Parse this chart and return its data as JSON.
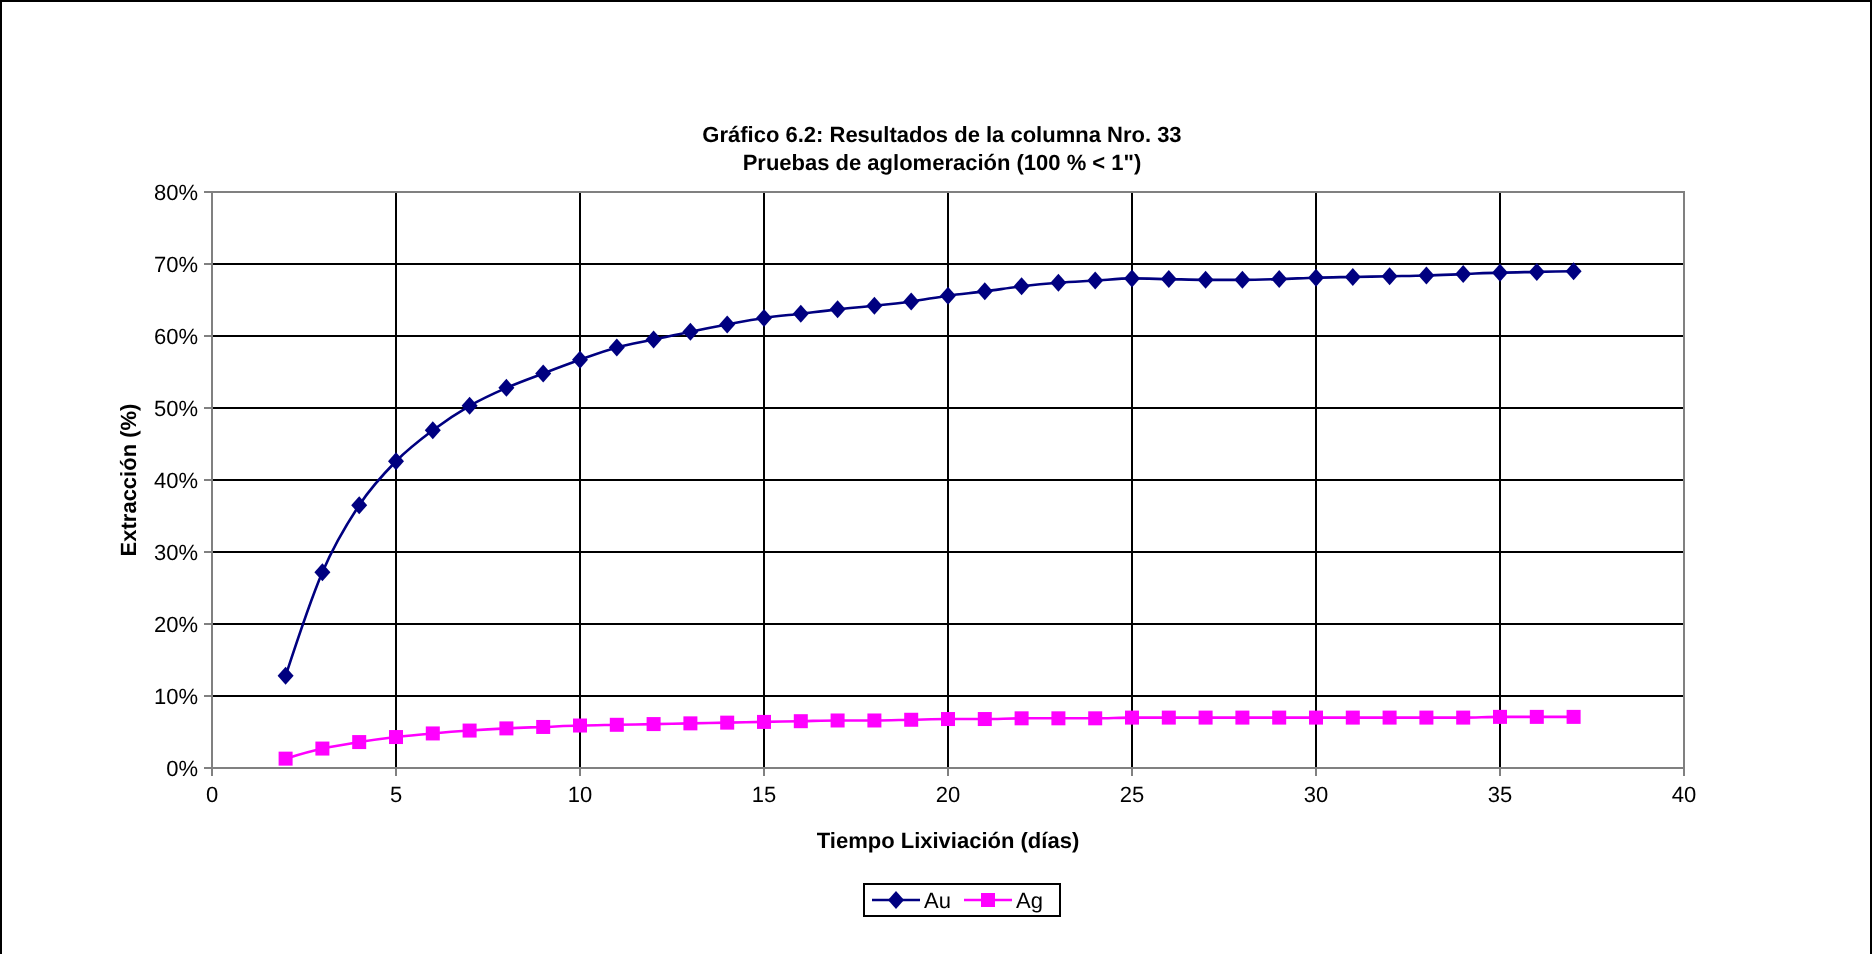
{
  "chart_data": {
    "type": "line",
    "title": "Gráfico 6.2: Resultados de la columna Nro. 33",
    "subtitle": "Pruebas de aglomeración (100 % < 1\")",
    "xlabel": "Tiempo Lixiviación (días)",
    "ylabel": "Extracción  (%)",
    "x": [
      2,
      3,
      4,
      5,
      6,
      7,
      8,
      9,
      10,
      11,
      12,
      13,
      14,
      15,
      16,
      17,
      18,
      19,
      20,
      21,
      22,
      23,
      24,
      25,
      26,
      27,
      28,
      29,
      30,
      31,
      32,
      33,
      34,
      35,
      36,
      37
    ],
    "series": [
      {
        "name": "Au",
        "color": "#000080",
        "marker": "diamond",
        "values": [
          12.8,
          27.2,
          36.5,
          42.6,
          46.9,
          50.3,
          52.8,
          54.8,
          56.7,
          58.4,
          59.5,
          60.6,
          61.6,
          62.5,
          63.1,
          63.7,
          64.2,
          64.8,
          65.6,
          66.2,
          66.9,
          67.4,
          67.7,
          68.0,
          67.9,
          67.8,
          67.8,
          67.9,
          68.1,
          68.2,
          68.3,
          68.4,
          68.6,
          68.8,
          68.9,
          69.0
        ]
      },
      {
        "name": "Ag",
        "color": "#ff00ff",
        "marker": "square",
        "values": [
          1.3,
          2.7,
          3.6,
          4.3,
          4.8,
          5.2,
          5.5,
          5.7,
          5.9,
          6.0,
          6.1,
          6.2,
          6.3,
          6.4,
          6.5,
          6.6,
          6.6,
          6.7,
          6.8,
          6.8,
          6.9,
          6.9,
          6.9,
          7.0,
          7.0,
          7.0,
          7.0,
          7.0,
          7.0,
          7.0,
          7.0,
          7.0,
          7.0,
          7.1,
          7.1,
          7.1
        ]
      }
    ],
    "xlim": [
      0,
      40
    ],
    "xticks": [
      0,
      5,
      10,
      15,
      20,
      25,
      30,
      35,
      40
    ],
    "ylim": [
      0,
      80
    ],
    "yticks": [
      {
        "value": 0,
        "label": "0%"
      },
      {
        "value": 10,
        "label": "10%"
      },
      {
        "value": 20,
        "label": "20%"
      },
      {
        "value": 30,
        "label": "30%"
      },
      {
        "value": 40,
        "label": "40%"
      },
      {
        "value": 50,
        "label": "50%"
      },
      {
        "value": 60,
        "label": "60%"
      },
      {
        "value": 70,
        "label": "70%"
      },
      {
        "value": 80,
        "label": "80%"
      }
    ],
    "grid": true,
    "legend": "bottom",
    "line_style": "solid"
  }
}
